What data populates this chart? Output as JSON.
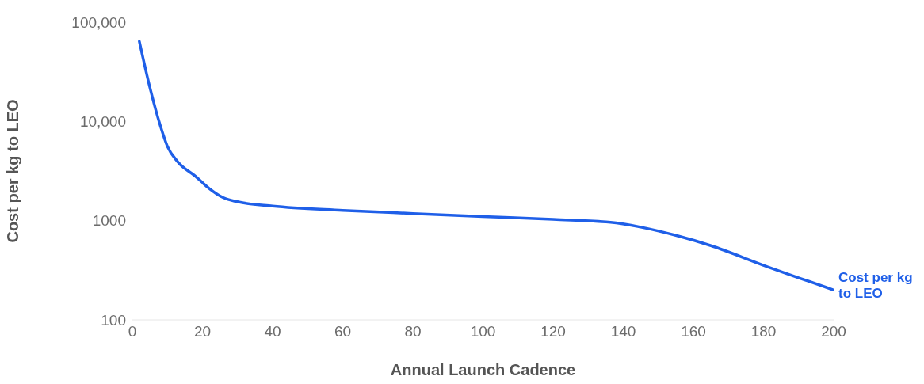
{
  "chart_data": {
    "type": "line",
    "xlabel": "Annual Launch Cadence",
    "ylabel": "Cost per kg to LEO",
    "log": "y",
    "grid": false,
    "legend": false,
    "marker": "none",
    "line_style": "solid",
    "xlim": [
      0,
      200
    ],
    "xticks": [
      0,
      20,
      40,
      60,
      80,
      100,
      120,
      140,
      160,
      180,
      200
    ],
    "ylim": [
      100,
      100000
    ],
    "yticks": [
      {
        "value": 100,
        "label": "100"
      },
      {
        "value": 1000,
        "label": "1000"
      },
      {
        "value": 10000,
        "label": "10,000"
      },
      {
        "value": 100000,
        "label": "100,000"
      }
    ],
    "x": [
      2,
      5,
      8,
      10,
      13,
      18,
      22,
      26,
      30,
      40,
      60,
      80,
      100,
      120,
      138,
      145,
      155,
      165,
      180,
      200
    ],
    "series": [
      {
        "name": "Cost per kg to LEO",
        "color": "#1f5fe8",
        "values": [
          64000,
          22000,
          9000,
          5600,
          3900,
          2800,
          2100,
          1700,
          1550,
          1400,
          1270,
          1180,
          1100,
          1030,
          950,
          860,
          710,
          560,
          355,
          200
        ]
      }
    ]
  }
}
